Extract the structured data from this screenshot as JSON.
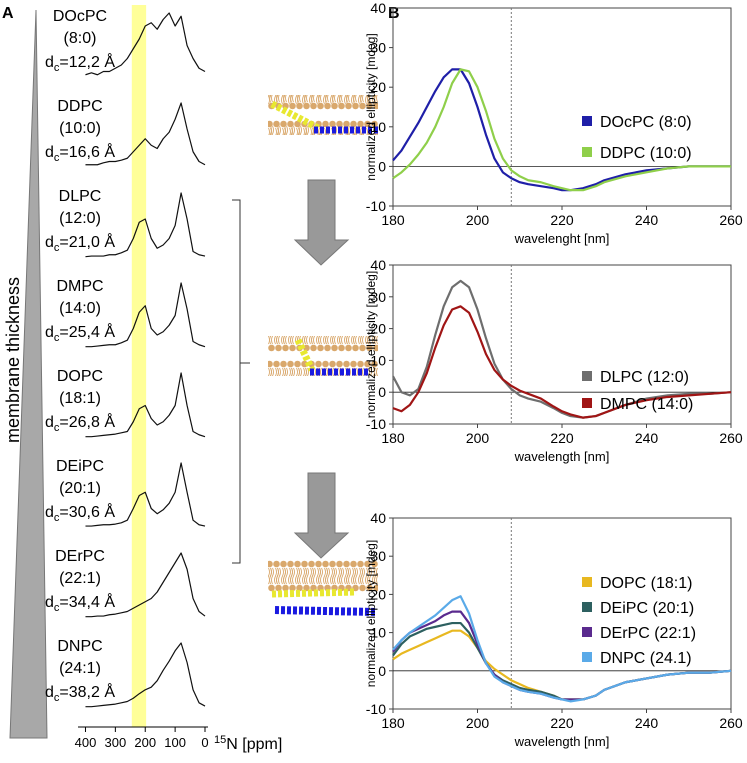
{
  "chart_data": [
    {
      "type": "line",
      "panel_label": "A",
      "annotation": "membrane thickness",
      "xlabel_sup": "15",
      "xlabel": "N [ppm]",
      "thickness_symbol": "d",
      "thickness_subscript": "c",
      "xlim": [
        425,
        -10
      ],
      "xticks": [
        400,
        300,
        200,
        100,
        0
      ],
      "highlight": [
        245,
        197
      ],
      "highlight_color": "#ffff99",
      "x": [
        400,
        380,
        360,
        340,
        320,
        300,
        280,
        260,
        240,
        220,
        200,
        180,
        160,
        140,
        120,
        100,
        80,
        60,
        40,
        20,
        0
      ],
      "series": [
        {
          "name": "DOcPC",
          "chain": "(8:0)",
          "thickness_label": "=12,2 Å",
          "color": "#111111",
          "values": [
            0.05,
            0.08,
            0.05,
            0.1,
            0.1,
            0.15,
            0.2,
            0.3,
            0.45,
            0.6,
            0.8,
            0.85,
            0.75,
            0.9,
            1.0,
            0.8,
            0.95,
            0.5,
            0.3,
            0.15,
            0.1
          ]
        },
        {
          "name": "DDPC",
          "chain": "(10:0)",
          "thickness_label": "=16,6 Å",
          "color": "#111111",
          "values": [
            0.05,
            0.05,
            0.05,
            0.08,
            0.1,
            0.1,
            0.12,
            0.15,
            0.25,
            0.35,
            0.45,
            0.35,
            0.3,
            0.45,
            0.55,
            0.75,
            1.0,
            0.6,
            0.25,
            0.1,
            0.05
          ]
        },
        {
          "name": "DLPC",
          "chain": "(12:0)",
          "thickness_label": "=21,0 Å",
          "color": "#111111",
          "values": [
            0.02,
            0.03,
            0.03,
            0.03,
            0.05,
            0.05,
            0.08,
            0.12,
            0.3,
            0.55,
            0.6,
            0.3,
            0.15,
            0.2,
            0.3,
            0.5,
            1.0,
            0.6,
            0.1,
            0.05,
            0.03
          ]
        },
        {
          "name": "DMPC",
          "chain": "(14:0)",
          "thickness_label": "=25,4 Å",
          "color": "#111111",
          "values": [
            0.02,
            0.02,
            0.03,
            0.04,
            0.05,
            0.05,
            0.08,
            0.12,
            0.3,
            0.55,
            0.65,
            0.3,
            0.2,
            0.25,
            0.35,
            0.5,
            1.0,
            0.6,
            0.1,
            0.05,
            0.02
          ]
        },
        {
          "name": "DOPC",
          "chain": "(18:1)",
          "thickness_label": "=26,8 Å",
          "color": "#111111",
          "values": [
            0.02,
            0.02,
            0.03,
            0.04,
            0.05,
            0.06,
            0.08,
            0.1,
            0.25,
            0.45,
            0.5,
            0.3,
            0.2,
            0.25,
            0.35,
            0.5,
            1.0,
            0.5,
            0.1,
            0.05,
            0.02
          ]
        },
        {
          "name": "DEiPC",
          "chain": "(20:1)",
          "thickness_label": "=30,6 Å",
          "color": "#111111",
          "values": [
            0.03,
            0.03,
            0.04,
            0.05,
            0.05,
            0.06,
            0.08,
            0.12,
            0.3,
            0.5,
            0.55,
            0.3,
            0.22,
            0.28,
            0.38,
            0.55,
            1.0,
            0.55,
            0.12,
            0.05,
            0.03
          ]
        },
        {
          "name": "DErPC",
          "chain": "(22:1)",
          "thickness_label": "=34,4 Å",
          "color": "#111111",
          "values": [
            0.02,
            0.02,
            0.03,
            0.03,
            0.05,
            0.06,
            0.08,
            0.1,
            0.15,
            0.2,
            0.25,
            0.3,
            0.4,
            0.55,
            0.7,
            0.85,
            1.0,
            0.75,
            0.3,
            0.1,
            0.03
          ]
        },
        {
          "name": "DNPC",
          "chain": "(24:1)",
          "thickness_label": "=38,2 Å",
          "color": "#111111",
          "values": [
            0.02,
            0.02,
            0.03,
            0.04,
            0.05,
            0.06,
            0.08,
            0.1,
            0.15,
            0.22,
            0.28,
            0.32,
            0.42,
            0.58,
            0.72,
            0.88,
            1.0,
            0.7,
            0.28,
            0.08,
            0.03
          ]
        }
      ]
    },
    {
      "type": "line",
      "panel_label": "B",
      "xlabel": "wavelenght [nm]",
      "ylabel": "normalized ellipticity [mdeg]",
      "xlim": [
        180,
        260
      ],
      "ylim": [
        -10,
        40
      ],
      "xticks": [
        180,
        200,
        220,
        240,
        260
      ],
      "yticks": [
        -10,
        0,
        10,
        20,
        30,
        40
      ],
      "vline": 208,
      "legend": "right",
      "x": [
        180,
        182,
        184,
        186,
        188,
        190,
        192,
        194,
        196,
        198,
        200,
        202,
        204,
        206,
        208,
        210,
        212,
        215,
        218,
        220,
        222,
        225,
        228,
        230,
        235,
        240,
        245,
        250,
        255,
        260
      ],
      "series": [
        {
          "name": "DOcPC (8:0)",
          "color": "#1f1fa8",
          "values": [
            1.5,
            4,
            7.5,
            11,
            15,
            19,
            22.5,
            24.5,
            24.5,
            21,
            15,
            8,
            2,
            -1.5,
            -3,
            -4,
            -4.5,
            -5,
            -5.5,
            -6,
            -6,
            -5.5,
            -4.5,
            -3.5,
            -2,
            -1,
            -0.5,
            0,
            0,
            0
          ]
        },
        {
          "name": "DDPC (10:0)",
          "color": "#8fcf4a",
          "values": [
            -3,
            -1.5,
            0.5,
            3,
            6,
            10,
            15,
            21,
            24.5,
            24,
            20,
            14,
            7,
            2,
            -1,
            -2.5,
            -3.5,
            -4,
            -5,
            -5.5,
            -6,
            -6,
            -5,
            -4,
            -2.5,
            -1.5,
            -0.5,
            0,
            0,
            0
          ]
        }
      ]
    },
    {
      "type": "line",
      "xlabel": "wavelength [nm]",
      "ylabel": "normalized ellipticity [mdeg]",
      "xlim": [
        180,
        260
      ],
      "ylim": [
        -10,
        40
      ],
      "xticks": [
        180,
        200,
        220,
        240,
        260
      ],
      "yticks": [
        -10,
        0,
        10,
        20,
        30,
        40
      ],
      "vline": 208,
      "legend": "right",
      "x": [
        180,
        182,
        184,
        186,
        188,
        190,
        192,
        194,
        196,
        198,
        200,
        202,
        204,
        206,
        208,
        210,
        212,
        215,
        218,
        220,
        222,
        225,
        228,
        230,
        235,
        240,
        245,
        250,
        255,
        260
      ],
      "series": [
        {
          "name": "DLPC (12:0)",
          "color": "#6e6e6e",
          "values": [
            5,
            0,
            -1,
            1,
            8,
            18,
            27,
            33,
            35,
            33,
            26,
            17,
            9,
            4,
            1,
            -1,
            -2,
            -3,
            -5,
            -6.5,
            -7.5,
            -8,
            -7.5,
            -6.5,
            -4,
            -2,
            -1,
            -0.5,
            -0.5,
            0
          ]
        },
        {
          "name": "DMPC (14:0)",
          "color": "#a01515",
          "values": [
            -5,
            -6,
            -4,
            0,
            6,
            14,
            21,
            26,
            27,
            25,
            19,
            12,
            7,
            4,
            2,
            0.5,
            -0.5,
            -2,
            -4.5,
            -6,
            -7,
            -8,
            -7.5,
            -6.5,
            -4,
            -2.5,
            -1.5,
            -1,
            -0.5,
            0
          ]
        }
      ]
    },
    {
      "type": "line",
      "xlabel": "wavelength [nm]",
      "ylabel": "normalized ellipticity  [mdeg]",
      "xlim": [
        180,
        260
      ],
      "ylim": [
        -10,
        40
      ],
      "xticks": [
        180,
        200,
        220,
        240,
        260
      ],
      "yticks": [
        -10,
        0,
        10,
        20,
        30,
        40
      ],
      "vline": 208,
      "legend": "right",
      "x": [
        180,
        182,
        184,
        186,
        188,
        190,
        192,
        194,
        196,
        198,
        200,
        202,
        204,
        206,
        208,
        210,
        212,
        215,
        218,
        220,
        222,
        225,
        228,
        230,
        235,
        240,
        245,
        250,
        255,
        260
      ],
      "series": [
        {
          "name": "DOPC (18:1)",
          "color": "#e8b820",
          "values": [
            3,
            4.5,
            5.5,
            6.5,
            7.5,
            8.5,
            9.5,
            10.5,
            10.5,
            9,
            6,
            2.5,
            0.5,
            -1,
            -2.5,
            -3.5,
            -4.5,
            -5.5,
            -6.5,
            -7.5,
            -7.5,
            -7.5,
            -6.5,
            -5,
            -3,
            -2,
            -1,
            -0.5,
            -0.5,
            0
          ]
        },
        {
          "name": "DEiPC (20:1)",
          "color": "#2d6060",
          "values": [
            4,
            7,
            9,
            10,
            11,
            11.5,
            12,
            12.5,
            12.5,
            10,
            6,
            2,
            -1,
            -2.5,
            -3.5,
            -4.5,
            -5,
            -5.5,
            -6.5,
            -7.5,
            -7.5,
            -7.5,
            -6.5,
            -5,
            -3,
            -2,
            -1,
            -0.5,
            -0.5,
            0
          ]
        },
        {
          "name": "DErPC (22:1)",
          "color": "#5a2a8e",
          "values": [
            5,
            8,
            10,
            11,
            12,
            13,
            14.5,
            15.5,
            15.5,
            12.5,
            7,
            2,
            -1,
            -3,
            -4,
            -5,
            -5.5,
            -6,
            -7,
            -7.5,
            -7.5,
            -7.5,
            -6.5,
            -5,
            -3,
            -2,
            -1,
            -0.5,
            -0.5,
            0
          ]
        },
        {
          "name": "DNPC (24.1)",
          "color": "#5aaae8",
          "values": [
            5.5,
            8,
            10,
            11.5,
            13,
            14.5,
            16.5,
            18.5,
            19.5,
            15,
            8,
            2,
            -1.5,
            -3,
            -4,
            -5,
            -5.5,
            -6,
            -7,
            -7.5,
            -8,
            -7.5,
            -6.5,
            -5,
            -3,
            -2,
            -1,
            -0.5,
            -0.5,
            0
          ]
        }
      ]
    }
  ]
}
